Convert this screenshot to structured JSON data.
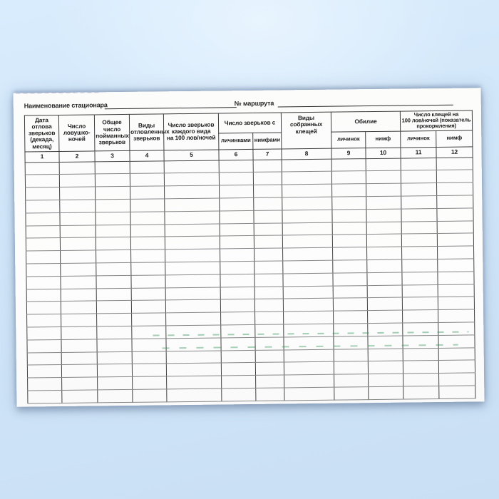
{
  "form": {
    "station_label": "Наименование стационара",
    "station_value": "",
    "route_label": "№ маршрута",
    "route_value": ""
  },
  "table": {
    "headers": {
      "col1": "Дата отлова\nзверьков\n(декада,\nмесяц)",
      "col2": "Число\nловушко-\nночей",
      "col3": "Общее число\nпойманных\nзверьков",
      "col4": "Виды\nотловленных\nзверьков",
      "col5": "Число зверьков\nкаждого вида\nна 100 лов/ночей",
      "group6_7": "Число зверьков с",
      "col6": "личинками",
      "col7": "нимфами",
      "col8": "Виды собранных\nклещей",
      "group9_10": "Обилие",
      "col9": "личинок",
      "col10": "нимф",
      "group11_12": "Число клещей на\n100 лов/ночей (показатель\nпрокормления)",
      "col11": "личинок",
      "col12": "нимф"
    },
    "column_numbers": [
      "1",
      "2",
      "3",
      "4",
      "5",
      "6",
      "7",
      "8",
      "9",
      "10",
      "11",
      "12"
    ],
    "column_count": 12,
    "empty_row_count": 19,
    "rows": []
  },
  "colors": {
    "background_blue": "#d1e6f9",
    "paper": "#fdfdfd",
    "ink": "#1d1d1d",
    "grid_dark": "#3d3d3d",
    "grid_light": "#878787",
    "artifact_green": "#238c4b"
  }
}
